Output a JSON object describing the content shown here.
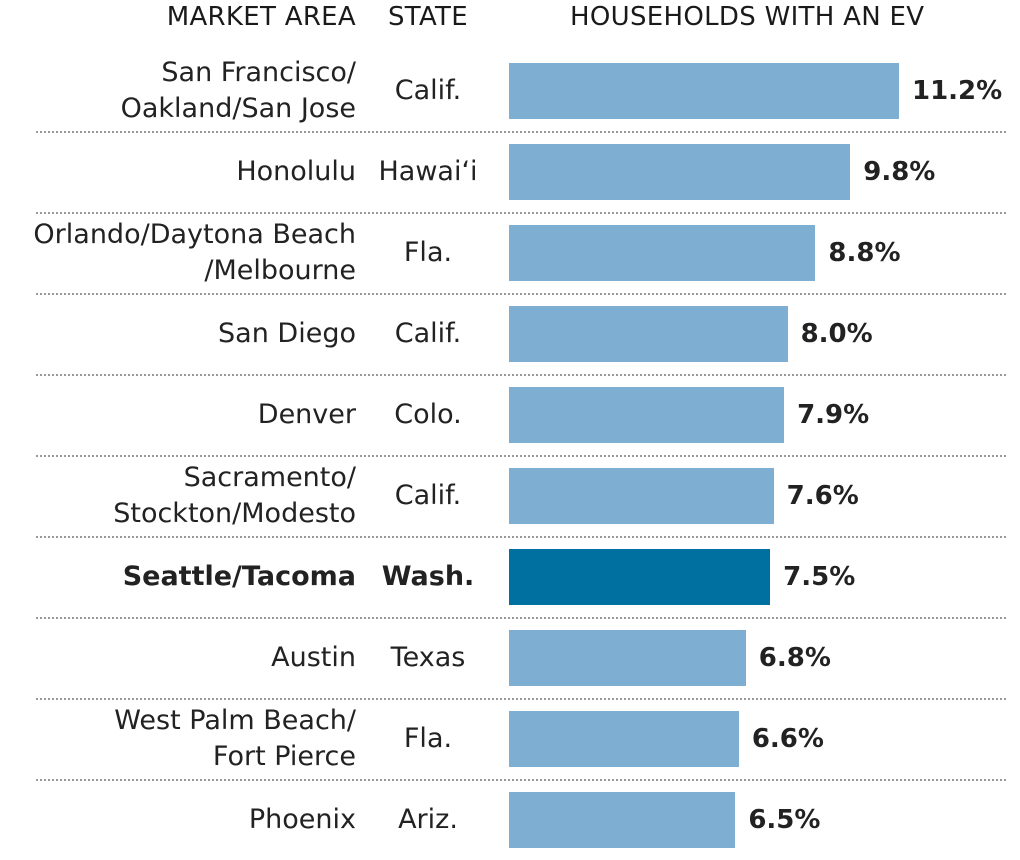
{
  "headers": {
    "market_area": "MARKET AREA",
    "state": "STATE",
    "households": "HOUSEHOLDS WITH AN EV"
  },
  "colors": {
    "bar": "#7eaed2",
    "highlight_bar": "#0070a0"
  },
  "chart_data": {
    "type": "bar",
    "orientation": "horizontal",
    "categories": [
      "San Francisco/\nOakland/San Jose",
      "Honolulu",
      "Orlando/Daytona Beach\n/Melbourne",
      "San Diego",
      "Denver",
      "Sacramento/\nStockton/Modesto",
      "Seattle/Tacoma",
      "Austin",
      "West Palm Beach/\nFort Pierce",
      "Phoenix"
    ],
    "states": [
      "Calif.",
      "Hawai‘i",
      "Fla.",
      "Calif.",
      "Colo.",
      "Calif.",
      "Wash.",
      "Texas",
      "Fla.",
      "Ariz."
    ],
    "values": [
      11.2,
      9.8,
      8.8,
      8.0,
      7.9,
      7.6,
      7.5,
      6.8,
      6.6,
      6.5
    ],
    "value_labels": [
      "11.2%",
      "9.8%",
      "8.8%",
      "8.0%",
      "7.9%",
      "7.6%",
      "7.5%",
      "6.8%",
      "6.6%",
      "6.5%"
    ],
    "highlight": "Seattle/Tacoma",
    "xlim": [
      0,
      11.2
    ],
    "grid": false
  }
}
